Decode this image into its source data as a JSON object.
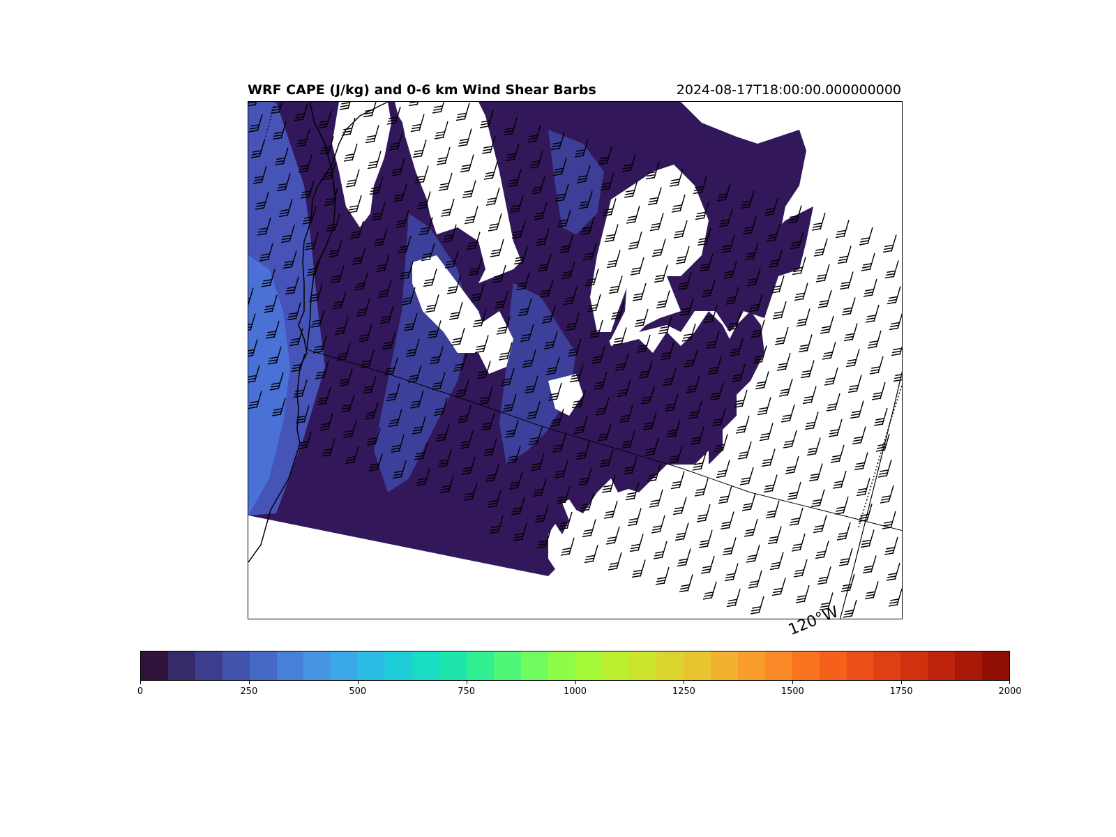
{
  "title": "WRF CAPE (J/kg) and 0-6 km Wind Shear Barbs",
  "valid_time": "2024-08-17T18:00:00.000000000",
  "gridline_label": "120°W",
  "map": {
    "field": "CAPE",
    "units": "J/kg",
    "overlay": "0-6 km wind shear barbs",
    "palette": "turbo",
    "value_range": [
      0,
      2000
    ],
    "masked_below": 0
  },
  "colorbar": {
    "min": 0,
    "max": 2000,
    "ticks": [
      0,
      250,
      500,
      750,
      1000,
      1250,
      1500,
      1750,
      2000
    ],
    "tick_labels": [
      "0",
      "250",
      "500",
      "750",
      "1000",
      "1250",
      "1500",
      "1750",
      "2000"
    ],
    "colors": [
      "#30123b",
      "#362a69",
      "#3d3d8e",
      "#4253ad",
      "#4669c6",
      "#4680d8",
      "#4695e3",
      "#3ba8e8",
      "#2cbde4",
      "#1ecdd8",
      "#19dcc4",
      "#1ee6ab",
      "#31ef91",
      "#4ff677",
      "#70fb5e",
      "#8ffd48",
      "#a5f938",
      "#baf02f",
      "#cce42d",
      "#dcd52e",
      "#e8c430",
      "#f2b230",
      "#f89d2c",
      "#fb8826",
      "#fa741f",
      "#f5611b",
      "#ec4f17",
      "#e03f13",
      "#d0310f",
      "#bd240b",
      "#a81907",
      "#910e03"
    ]
  }
}
